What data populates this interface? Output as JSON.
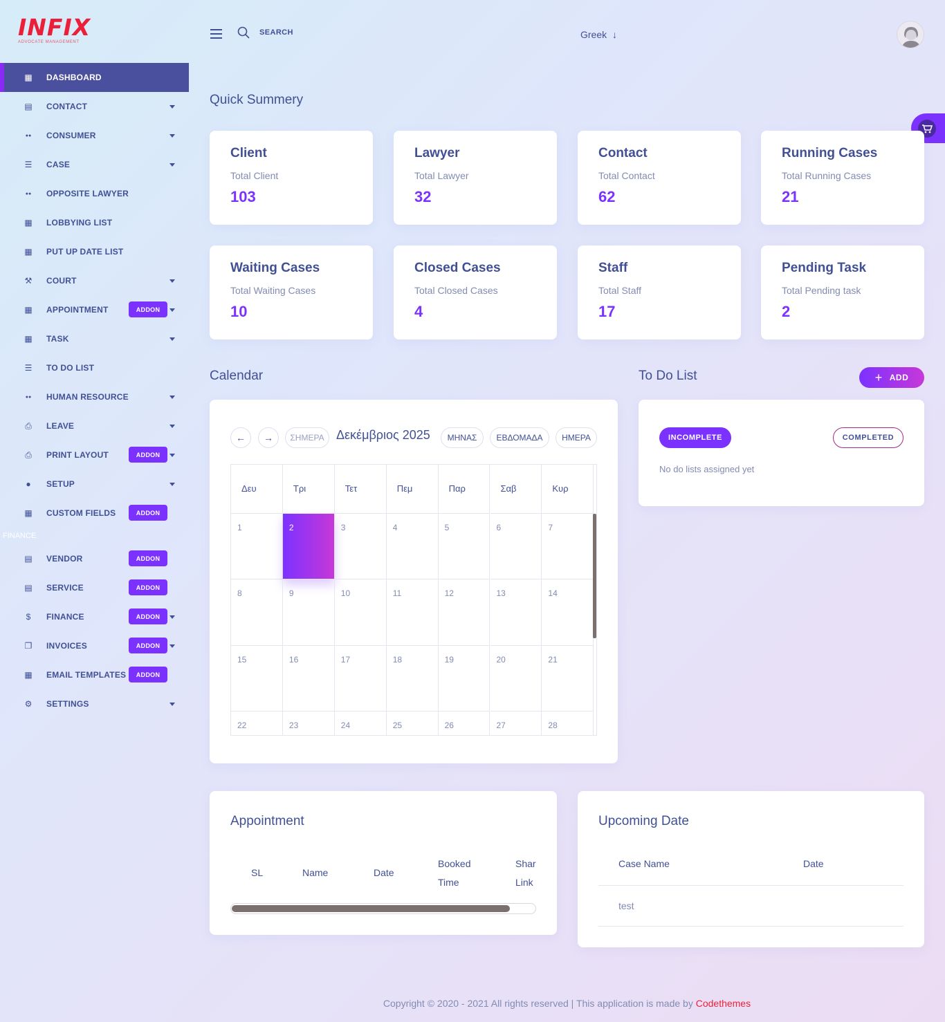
{
  "logo": {
    "text": "INFIX",
    "sub": "ADVOCATE MANAGEMENT"
  },
  "sidebar": {
    "items": [
      {
        "label": "DASHBOARD",
        "icon": "grid-icon",
        "active": true
      },
      {
        "label": "CONTACT",
        "icon": "contact-book-icon",
        "caret": true
      },
      {
        "label": "CONSUMER",
        "icon": "users-icon",
        "caret": true
      },
      {
        "label": "CASE",
        "icon": "list-icon",
        "caret": true
      },
      {
        "label": "OPPOSITE LAWYER",
        "icon": "users-icon"
      },
      {
        "label": "LOBBYING LIST",
        "icon": "grid-icon"
      },
      {
        "label": "PUT UP DATE LIST",
        "icon": "grid-icon"
      },
      {
        "label": "COURT",
        "icon": "gavel-icon",
        "caret": true
      },
      {
        "label": "APPOINTMENT",
        "icon": "calendar-icon",
        "addon": "ADDON",
        "caret": true
      },
      {
        "label": "TASK",
        "icon": "grid-icon",
        "caret": true
      },
      {
        "label": "TO DO LIST",
        "icon": "list-icon"
      },
      {
        "label": "HUMAN RESOURCE",
        "icon": "users-icon",
        "caret": true
      },
      {
        "label": "LEAVE",
        "icon": "printer-icon",
        "caret": true
      },
      {
        "label": "PRINT LAYOUT",
        "icon": "printer-icon",
        "addon": "ADDON",
        "caret": true
      },
      {
        "label": "SETUP",
        "icon": "user-icon",
        "caret": true
      },
      {
        "label": "CUSTOM FIELDS",
        "icon": "grid-icon",
        "addon": "ADDON"
      }
    ],
    "section_finance": "FINANCE",
    "finance_items": [
      {
        "label": "VENDOR",
        "icon": "store-icon",
        "addon": "ADDON"
      },
      {
        "label": "SERVICE",
        "icon": "store-icon",
        "addon": "ADDON"
      },
      {
        "label": "FINANCE",
        "icon": "dollar-icon",
        "addon": "ADDON",
        "caret": true
      },
      {
        "label": "INVOICES",
        "icon": "copy-icon",
        "addon": "ADDON",
        "caret": true
      },
      {
        "label": "EMAIL TEMPLATES",
        "icon": "grid-icon",
        "addon": "ADDON"
      },
      {
        "label": "SETTINGS",
        "icon": "gear-icon",
        "caret": true
      }
    ]
  },
  "header": {
    "search_label": "SEARCH",
    "language": "Greek"
  },
  "summary": {
    "title": "Quick Summery",
    "cards": [
      {
        "title": "Client",
        "sub": "Total Client",
        "value": "103"
      },
      {
        "title": "Lawyer",
        "sub": "Total Lawyer",
        "value": "32"
      },
      {
        "title": "Contact",
        "sub": "Total Contact",
        "value": "62"
      },
      {
        "title": "Running Cases",
        "sub": "Total Running Cases",
        "value": "21"
      },
      {
        "title": "Waiting Cases",
        "sub": "Total Waiting Cases",
        "value": "10"
      },
      {
        "title": "Closed Cases",
        "sub": "Total Closed Cases",
        "value": "4"
      },
      {
        "title": "Staff",
        "sub": "Total Staff",
        "value": "17"
      },
      {
        "title": "Pending Task",
        "sub": "Total Pending task",
        "value": "2"
      }
    ]
  },
  "calendar": {
    "title": "Calendar",
    "today_btn": "ΣΗΜΕΡΑ",
    "month_title": "Δεκέμβριος 2025",
    "views": [
      "ΜΗΝΑΣ",
      "ΕΒΔΟΜΑΔΑ",
      "ΗΜΕΡΑ"
    ],
    "weekdays": [
      "Δευ",
      "Τρι",
      "Τετ",
      "Πεμ",
      "Παρ",
      "Σαβ",
      "Κυρ"
    ],
    "weeks": [
      [
        "1",
        "2",
        "3",
        "4",
        "5",
        "6",
        "7"
      ],
      [
        "8",
        "9",
        "10",
        "11",
        "12",
        "13",
        "14"
      ],
      [
        "15",
        "16",
        "17",
        "18",
        "19",
        "20",
        "21"
      ],
      [
        "22",
        "23",
        "24",
        "25",
        "26",
        "27",
        "28"
      ]
    ],
    "today": "2"
  },
  "todo": {
    "title": "To Do List",
    "add_label": "ADD",
    "incomplete_label": "INCOMPLETE",
    "completed_label": "COMPLETED",
    "empty_text": "No do lists assigned yet"
  },
  "appointment": {
    "title": "Appointment",
    "columns": [
      "SL",
      "Name",
      "Date",
      "Booked",
      "Time",
      "Shar",
      "Link"
    ]
  },
  "upcoming": {
    "title": "Upcoming Date",
    "columns": [
      "Case Name",
      "Date"
    ],
    "rows": [
      {
        "case_name": "test",
        "date": ""
      }
    ]
  },
  "footer": {
    "text": "Copyright © 2020 - 2021 All rights reserved | This application is made by ",
    "link": "Codethemes"
  },
  "colors": {
    "accent": "#7c32ff",
    "text": "#415094",
    "muted": "#828bb2",
    "active_bg": "#4a4f9e",
    "brand_red": "#ec1f3a"
  }
}
